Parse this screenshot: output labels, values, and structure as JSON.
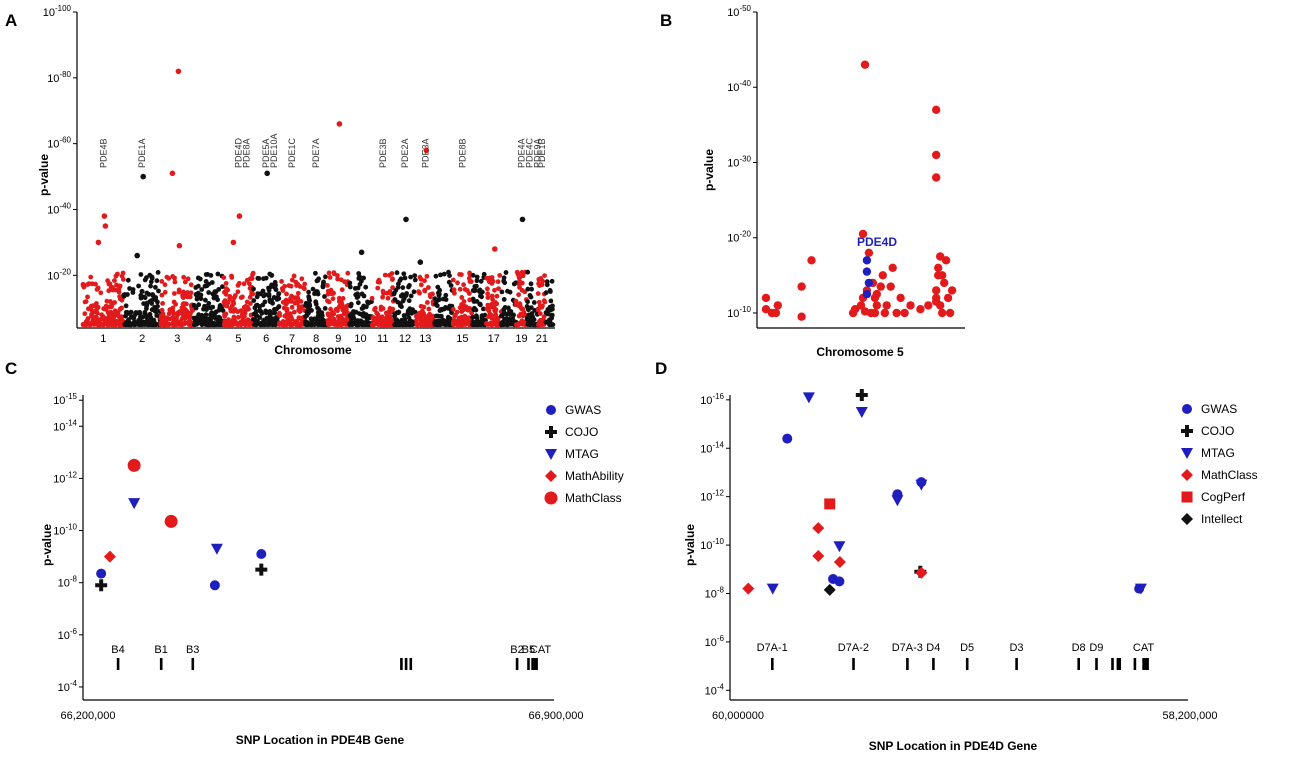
{
  "colors": {
    "red": "#e31a1c",
    "black": "#111111",
    "blue": "#1f1fbf",
    "gray": "#888888"
  },
  "chart_data": [
    {
      "panel": "A",
      "type": "scatter",
      "title": "",
      "xlabel": "Chromosome",
      "ylabel": "p-value",
      "y_tick_labels": [
        {
          "base": "10",
          "exp": "-100"
        },
        {
          "base": "10",
          "exp": "-80"
        },
        {
          "base": "10",
          "exp": "-60"
        },
        {
          "base": "10",
          "exp": "-40"
        },
        {
          "base": "10",
          "exp": "-20"
        }
      ],
      "y_tick_values": [
        100,
        80,
        60,
        40,
        20
      ],
      "ylim": [
        4,
        100
      ],
      "x_tick_labels": [
        "1",
        "2",
        "3",
        "4",
        "5",
        "6",
        "7",
        "8",
        "9",
        "10",
        "11",
        "12",
        "13",
        "15",
        "17",
        "19",
        "21"
      ],
      "chromosome_bands": [
        "red",
        "black",
        "red",
        "black",
        "red",
        "black",
        "red",
        "black",
        "red",
        "black",
        "red",
        "black",
        "red",
        "black",
        "red",
        "black",
        "red",
        "black",
        "red",
        "black",
        "red",
        "black"
      ],
      "highlight_points": [
        {
          "chr": "1",
          "neg_log10_p": 38,
          "color": "red"
        },
        {
          "chr": "1",
          "neg_log10_p": 30,
          "color": "red"
        },
        {
          "chr": "1",
          "neg_log10_p": 35,
          "color": "red"
        },
        {
          "chr": "2",
          "neg_log10_p": 50,
          "color": "black"
        },
        {
          "chr": "2",
          "neg_log10_p": 26,
          "color": "black"
        },
        {
          "chr": "3",
          "neg_log10_p": 82,
          "color": "red"
        },
        {
          "chr": "3",
          "neg_log10_p": 51,
          "color": "red"
        },
        {
          "chr": "3",
          "neg_log10_p": 29,
          "color": "red"
        },
        {
          "chr": "5",
          "neg_log10_p": 38,
          "color": "red"
        },
        {
          "chr": "5",
          "neg_log10_p": 30,
          "color": "red"
        },
        {
          "chr": "6",
          "neg_log10_p": 51,
          "color": "black"
        },
        {
          "chr": "9",
          "neg_log10_p": 66,
          "color": "red"
        },
        {
          "chr": "10",
          "neg_log10_p": 27,
          "color": "black"
        },
        {
          "chr": "12",
          "neg_log10_p": 37,
          "color": "black"
        },
        {
          "chr": "13",
          "neg_log10_p": 58,
          "color": "red"
        },
        {
          "chr": "13",
          "neg_log10_p": 24,
          "color": "black"
        },
        {
          "chr": "17",
          "neg_log10_p": 28,
          "color": "red"
        },
        {
          "chr": "19",
          "neg_log10_p": 37,
          "color": "black"
        }
      ],
      "gene_labels": [
        {
          "chr": "1",
          "text": "PDE4B"
        },
        {
          "chr": "2",
          "text": "PDE1A"
        },
        {
          "chr": "5",
          "text": "PDE4D"
        },
        {
          "chr": "5",
          "text": "PDE8A"
        },
        {
          "chr": "6",
          "text": "PDE5A"
        },
        {
          "chr": "6",
          "text": "PDE10A"
        },
        {
          "chr": "7",
          "text": "PDE1C"
        },
        {
          "chr": "8",
          "text": "PDE7A"
        },
        {
          "chr": "11",
          "text": "PDE3B"
        },
        {
          "chr": "12",
          "text": "PDE2A"
        },
        {
          "chr": "13",
          "text": "PDE3A"
        },
        {
          "chr": "15",
          "text": "PDE8B"
        },
        {
          "chr": "19",
          "text": "PDE4A"
        },
        {
          "chr": "19",
          "text": "PDE4C"
        },
        {
          "chr": "19",
          "text": "PDE9A"
        },
        {
          "chr": "21",
          "text": "PDE1B"
        }
      ]
    },
    {
      "panel": "B",
      "type": "scatter",
      "title": "",
      "xlabel": "Chromosome 5",
      "ylabel": "p-value",
      "y_tick_labels": [
        {
          "base": "10",
          "exp": "-50"
        },
        {
          "base": "10",
          "exp": "-40"
        },
        {
          "base": "10",
          "exp": "-30"
        },
        {
          "base": "10",
          "exp": "-20"
        },
        {
          "base": "10",
          "exp": "-10"
        }
      ],
      "y_tick_values": [
        50,
        40,
        30,
        20,
        10
      ],
      "ylim": [
        8,
        50
      ],
      "xlim": [
        0,
        100
      ],
      "annotation": "PDE4D",
      "series": [
        {
          "name": "red",
          "color": "red",
          "points": [
            [
              2,
              12
            ],
            [
              2,
              10.5
            ],
            [
              5,
              10
            ],
            [
              7,
              10
            ],
            [
              8,
              11
            ],
            [
              20,
              13.5
            ],
            [
              20,
              9.5
            ],
            [
              25,
              17
            ],
            [
              46,
              10
            ],
            [
              47,
              10.5
            ],
            [
              50,
              11
            ],
            [
              51,
              12
            ],
            [
              52,
              10.2
            ],
            [
              53,
              13
            ],
            [
              55,
              10
            ],
            [
              57,
              10
            ],
            [
              57,
              12
            ],
            [
              58,
              11
            ],
            [
              60,
              13.5
            ],
            [
              61,
              15
            ],
            [
              62,
              10
            ],
            [
              63,
              11
            ],
            [
              65,
              13.5
            ],
            [
              66,
              16
            ],
            [
              68,
              10
            ],
            [
              70,
              12
            ],
            [
              72,
              10
            ],
            [
              75,
              11
            ],
            [
              80,
              10.5
            ],
            [
              84,
              11
            ],
            [
              52,
              43
            ],
            [
              51,
              20.5
            ],
            [
              54,
              18
            ],
            [
              56,
              14
            ],
            [
              58,
              12.5
            ],
            [
              88,
              37
            ],
            [
              88,
              31
            ],
            [
              88,
              28
            ],
            [
              89,
              16
            ],
            [
              89,
              15
            ],
            [
              88,
              13
            ],
            [
              88,
              12
            ],
            [
              90,
              11
            ],
            [
              91,
              10
            ],
            [
              92,
              14
            ],
            [
              93,
              17
            ],
            [
              94,
              12
            ],
            [
              95,
              10
            ],
            [
              96,
              13
            ],
            [
              91,
              15
            ],
            [
              90,
              17.5
            ],
            [
              88,
              11.5
            ]
          ]
        },
        {
          "name": "blue",
          "color": "blue",
          "points": [
            [
              53,
              17
            ],
            [
              53,
              15.5
            ],
            [
              54,
              14
            ],
            [
              53,
              12.5
            ]
          ]
        }
      ]
    },
    {
      "panel": "C",
      "type": "scatter",
      "title": "",
      "xlabel": "SNP Location in PDE4B Gene",
      "ylabel": "p-value",
      "x_tick_labels": [
        "66,200,000",
        "66,900,000"
      ],
      "xlim": [
        66200000,
        66900000
      ],
      "y_tick_labels": [
        {
          "base": "10",
          "exp": "-15"
        },
        {
          "base": "10",
          "exp": "-14"
        },
        {
          "base": "10",
          "exp": "-12"
        },
        {
          "base": "10",
          "exp": "-10"
        },
        {
          "base": "10",
          "exp": "-8"
        },
        {
          "base": "10",
          "exp": "-6"
        },
        {
          "base": "10",
          "exp": "-4"
        }
      ],
      "y_tick_values": [
        15,
        14,
        12,
        10,
        8,
        6,
        4
      ],
      "ylim": [
        3.5,
        15.2
      ],
      "legend": [
        "GWAS",
        "COJO",
        "MTAG",
        "MathAbility",
        "MathClass"
      ],
      "series": [
        {
          "name": "GWAS",
          "marker": "circle-small",
          "color": "blue",
          "points": [
            [
              66227000,
              8.35
            ],
            [
              66396000,
              7.9
            ],
            [
              66465000,
              9.1
            ]
          ]
        },
        {
          "name": "COJO",
          "marker": "cross",
          "color": "black",
          "points": [
            [
              66227000,
              7.9
            ],
            [
              66465000,
              8.5
            ]
          ]
        },
        {
          "name": "MTAG",
          "marker": "triangle-down",
          "color": "blue",
          "points": [
            [
              66276000,
              11.05
            ],
            [
              66399000,
              9.3
            ]
          ]
        },
        {
          "name": "MathAbility",
          "marker": "diamond",
          "color": "red",
          "points": [
            [
              66240000,
              9.0
            ]
          ]
        },
        {
          "name": "MathClass",
          "marker": "circle-large",
          "color": "red",
          "points": [
            [
              66276000,
              12.5
            ],
            [
              66331000,
              10.35
            ]
          ]
        }
      ],
      "exon_labels": [
        {
          "text": "B4",
          "pos": 66252000
        },
        {
          "text": "B1",
          "pos": 66316000
        },
        {
          "text": "B3",
          "pos": 66363000
        },
        {
          "text": "B2",
          "pos": 66845000
        },
        {
          "text": "B5",
          "pos": 66862000
        },
        {
          "text": "CAT",
          "pos": 66880000
        }
      ],
      "exon_positions": [
        66252000,
        66316000,
        66363000,
        66673000,
        66680000,
        66687000,
        66845000,
        66862000,
        66868000,
        66871000,
        66874000
      ]
    },
    {
      "panel": "D",
      "type": "scatter",
      "title": "",
      "xlabel": "SNP Location in PDE4D Gene",
      "ylabel": "p-value",
      "x_tick_labels": [
        "60,000000",
        "58,200,000"
      ],
      "xlim": [
        60000000,
        58200000
      ],
      "y_tick_labels": [
        {
          "base": "10",
          "exp": "-16"
        },
        {
          "base": "10",
          "exp": "-14"
        },
        {
          "base": "10",
          "exp": "-12"
        },
        {
          "base": "10",
          "exp": "-10"
        },
        {
          "base": "10",
          "exp": "-8"
        },
        {
          "base": "10",
          "exp": "-6"
        },
        {
          "base": "10",
          "exp": "-4"
        }
      ],
      "y_tick_values": [
        16,
        14,
        12,
        10,
        8,
        6,
        4
      ],
      "ylim": [
        3.6,
        16.2
      ],
      "legend": [
        "GWAS",
        "COJO",
        "MTAG",
        "MathClass",
        "CogPerf",
        "Intellect"
      ],
      "series": [
        {
          "name": "GWAS",
          "marker": "circle-small",
          "color": "blue",
          "points": [
            [
              59775000,
              14.4
            ],
            [
              59595000,
              8.6
            ],
            [
              59570000,
              8.5
            ],
            [
              59342000,
              12.1
            ],
            [
              59248000,
              12.6
            ],
            [
              58392000,
              8.2
            ]
          ]
        },
        {
          "name": "COJO",
          "marker": "cross",
          "color": "black",
          "points": [
            [
              59482000,
              16.2
            ],
            [
              59252000,
              8.9
            ]
          ]
        },
        {
          "name": "MTAG",
          "marker": "triangle-down",
          "color": "blue",
          "points": [
            [
              59832000,
              8.2
            ],
            [
              59690000,
              16.1
            ],
            [
              59482000,
              15.5
            ],
            [
              59570000,
              9.95
            ],
            [
              59342000,
              11.85
            ],
            [
              59248000,
              12.5
            ],
            [
              58385000,
              8.2
            ]
          ]
        },
        {
          "name": "MathClass",
          "marker": "diamond",
          "color": "red",
          "points": [
            [
              59928000,
              8.2
            ],
            [
              59653000,
              10.7
            ],
            [
              59653000,
              9.55
            ],
            [
              59568000,
              9.3
            ],
            [
              59248000,
              8.85
            ]
          ]
        },
        {
          "name": "CogPerf",
          "marker": "square",
          "color": "red",
          "points": [
            [
              59608000,
              11.7
            ]
          ]
        },
        {
          "name": "Intellect",
          "marker": "diamond",
          "color": "black",
          "points": [
            [
              59608000,
              8.15
            ]
          ]
        }
      ],
      "exon_labels": [
        {
          "text": "D7A-1",
          "pos": 59834000
        },
        {
          "text": "D7A-2",
          "pos": 59515000
        },
        {
          "text": "D7A-3",
          "pos": 59303000
        },
        {
          "text": "D4",
          "pos": 59201000
        },
        {
          "text": "D5",
          "pos": 59068000
        },
        {
          "text": "D3",
          "pos": 58874000
        },
        {
          "text": "D8",
          "pos": 58630000
        },
        {
          "text": "D9",
          "pos": 58560000
        },
        {
          "text": "CAT",
          "pos": 58375000
        }
      ],
      "exon_positions": [
        59834000,
        59515000,
        59303000,
        59201000,
        59068000,
        58874000,
        58630000,
        58560000,
        58497000,
        58476000,
        58469000,
        58409000,
        58375000,
        58366000,
        58359000
      ]
    }
  ],
  "panel_labels": [
    "A",
    "B",
    "C",
    "D"
  ]
}
